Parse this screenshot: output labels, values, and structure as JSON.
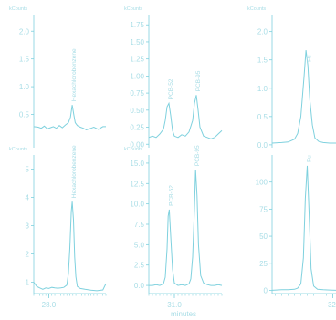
{
  "figure": {
    "line_color": "#7fd1de",
    "text_color": "#a8dde6",
    "x_axis_label": "minutes"
  },
  "chart_data": [
    {
      "type": "line",
      "row": 0,
      "col": 0,
      "ylabel": "kCounts",
      "ylim": [
        -0.1,
        2.3
      ],
      "yticks": [
        0.5,
        1.0,
        1.5,
        2.0
      ],
      "ytick_labels": [
        "0.5",
        "1.0",
        "1.5",
        "2.0"
      ],
      "xlim": [
        27.5,
        29.9
      ],
      "xticks": [
        28.0
      ],
      "xtick_labels": [],
      "series": [
        {
          "x": [
            27.5,
            27.65,
            27.75,
            27.85,
            27.95,
            28.05,
            28.15,
            28.25,
            28.35,
            28.45,
            28.55,
            28.65,
            28.72,
            28.78,
            28.83,
            28.88,
            28.95,
            29.05,
            29.15,
            29.25,
            29.35,
            29.5,
            29.65,
            29.8,
            29.9
          ],
          "y": [
            0.28,
            0.27,
            0.25,
            0.29,
            0.24,
            0.26,
            0.28,
            0.25,
            0.3,
            0.26,
            0.31,
            0.35,
            0.45,
            0.67,
            0.5,
            0.35,
            0.3,
            0.27,
            0.25,
            0.22,
            0.24,
            0.27,
            0.23,
            0.28,
            0.28
          ]
        }
      ],
      "annotations": [
        {
          "text": "Hexachlorobenzene",
          "x": 28.78
        }
      ]
    },
    {
      "type": "line",
      "row": 1,
      "col": 0,
      "ylabel": "kCounts",
      "ylim": [
        0.6,
        5.5
      ],
      "yticks": [
        1,
        2,
        3,
        4,
        5
      ],
      "ytick_labels": [
        "1",
        "2",
        "3",
        "4",
        "5"
      ],
      "xlim": [
        27.5,
        29.9
      ],
      "xticks": [
        28.0
      ],
      "xtick_labels": [
        "28.0"
      ],
      "series": [
        {
          "x": [
            27.5,
            27.6,
            27.7,
            27.8,
            27.9,
            28.0,
            28.1,
            28.2,
            28.3,
            28.4,
            28.5,
            28.6,
            28.65,
            28.7,
            28.75,
            28.78,
            28.82,
            28.86,
            28.9,
            28.95,
            29.05,
            29.2,
            29.4,
            29.6,
            29.8,
            29.9
          ],
          "y": [
            1.0,
            0.85,
            0.8,
            0.75,
            0.8,
            0.78,
            0.82,
            0.8,
            0.79,
            0.8,
            0.82,
            0.9,
            1.3,
            2.2,
            3.5,
            3.85,
            3.2,
            1.9,
            1.2,
            0.85,
            0.78,
            0.75,
            0.72,
            0.7,
            0.73,
            0.95
          ]
        }
      ],
      "annotations": [
        {
          "text": "Hexachlorobenzene",
          "x": 28.78
        }
      ]
    },
    {
      "type": "line",
      "row": 0,
      "col": 1,
      "ylabel": "kCounts",
      "ylim": [
        -0.05,
        1.9
      ],
      "yticks": [
        0.0,
        0.25,
        0.5,
        0.75,
        1.0,
        1.25,
        1.5,
        1.75
      ],
      "ytick_labels": [
        "0.00",
        "0.25",
        "0.50",
        "0.75",
        "1.00",
        "1.25",
        "1.50",
        "1.75"
      ],
      "xlim": [
        30.3,
        32.3
      ],
      "xticks": [
        31.0
      ],
      "xtick_labels": [],
      "series": [
        {
          "x": [
            30.3,
            30.4,
            30.5,
            30.6,
            30.7,
            30.75,
            30.8,
            30.85,
            30.9,
            30.95,
            31.0,
            31.1,
            31.2,
            31.3,
            31.4,
            31.5,
            31.55,
            31.6,
            31.65,
            31.7,
            31.8,
            31.9,
            32.0,
            32.1,
            32.2,
            32.3
          ],
          "y": [
            0.1,
            0.12,
            0.1,
            0.15,
            0.22,
            0.35,
            0.55,
            0.6,
            0.42,
            0.2,
            0.12,
            0.1,
            0.14,
            0.12,
            0.18,
            0.35,
            0.6,
            0.72,
            0.5,
            0.25,
            0.12,
            0.1,
            0.08,
            0.1,
            0.15,
            0.2
          ]
        }
      ],
      "annotations": [
        {
          "text": "PCB-52",
          "x": 30.85
        },
        {
          "text": "PCB-95",
          "x": 31.6
        }
      ]
    },
    {
      "type": "line",
      "row": 1,
      "col": 1,
      "ylabel": "kCounts",
      "ylim": [
        -1.0,
        16.0
      ],
      "yticks": [
        0.0,
        2.5,
        5.0,
        7.5,
        10.0,
        12.5,
        15.0
      ],
      "ytick_labels": [
        "0.0",
        "2.5",
        "5.0",
        "7.5",
        "10.0",
        "12.5",
        "15.0"
      ],
      "xlim": [
        30.3,
        32.3
      ],
      "xticks": [
        31.0
      ],
      "xtick_labels": [
        "31.0"
      ],
      "series": [
        {
          "x": [
            30.3,
            30.4,
            30.5,
            30.6,
            30.7,
            30.75,
            30.8,
            30.83,
            30.86,
            30.9,
            30.95,
            31.0,
            31.1,
            31.2,
            31.3,
            31.4,
            31.45,
            31.5,
            31.55,
            31.58,
            31.62,
            31.66,
            31.72,
            31.8,
            31.9,
            32.0,
            32.1,
            32.2,
            32.3
          ],
          "y": [
            0.0,
            0.0,
            0.1,
            0.0,
            0.2,
            1.0,
            4.5,
            8.5,
            9.3,
            6.0,
            2.0,
            0.3,
            0.0,
            0.1,
            0.0,
            0.2,
            0.8,
            3.5,
            9.5,
            14.2,
            11.0,
            5.0,
            1.2,
            0.3,
            0.1,
            0.0,
            0.0,
            0.1,
            0.0
          ]
        }
      ],
      "annotations": [
        {
          "text": "PCB-52",
          "x": 30.86
        },
        {
          "text": "PCB-95",
          "x": 31.58
        }
      ]
    },
    {
      "type": "line",
      "row": 0,
      "col": 2,
      "ylabel": "kCounts",
      "ylim": [
        -0.05,
        2.3
      ],
      "yticks": [
        0.0,
        0.5,
        1.0,
        1.5,
        2.0
      ],
      "ytick_labels": [
        "0.0",
        "0.5",
        "1.0",
        "1.5",
        "2.0"
      ],
      "xlim": [
        31.55,
        32.55
      ],
      "xticks": [
        32.5
      ],
      "xtick_labels": [],
      "series": [
        {
          "x": [
            31.55,
            31.7,
            31.8,
            31.9,
            31.95,
            32.0,
            32.05,
            32.08,
            32.11,
            32.14,
            32.18,
            32.22,
            32.28,
            32.35,
            32.45,
            32.55
          ],
          "y": [
            0.03,
            0.04,
            0.05,
            0.1,
            0.2,
            0.5,
            1.2,
            1.67,
            1.4,
            0.8,
            0.35,
            0.12,
            0.06,
            0.04,
            0.03,
            0.03
          ]
        }
      ],
      "annotations": [
        {
          "text": "Fu",
          "x": 32.1
        }
      ]
    },
    {
      "type": "line",
      "row": 1,
      "col": 2,
      "ylabel": "",
      "ylim": [
        -3,
        125
      ],
      "yticks": [
        0,
        25,
        50,
        75,
        100
      ],
      "ytick_labels": [
        "0",
        "25",
        "50",
        "75",
        "100"
      ],
      "xlim": [
        31.55,
        32.55
      ],
      "xticks": [
        32.5
      ],
      "xtick_labels": [
        "32."
      ],
      "series": [
        {
          "x": [
            31.55,
            31.7,
            31.8,
            31.9,
            31.95,
            32.0,
            32.04,
            32.07,
            32.1,
            32.13,
            32.16,
            32.2,
            32.26,
            32.35,
            32.45,
            32.55
          ],
          "y": [
            0,
            0.5,
            0.5,
            1,
            2,
            6,
            30,
            85,
            115,
            70,
            20,
            4,
            1,
            0.5,
            0.3,
            0
          ]
        }
      ],
      "annotations": [
        {
          "text": "Fu",
          "x": 32.1
        }
      ]
    }
  ]
}
